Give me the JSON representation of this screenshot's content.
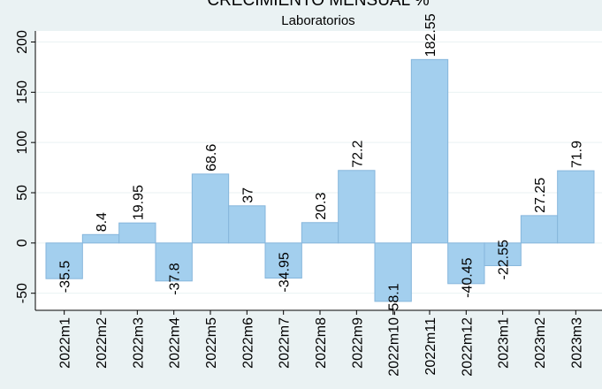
{
  "chart_data": {
    "type": "bar",
    "title": "CRECIMIENTO MENSUAL %",
    "subtitle": "Laboratorios",
    "categories": [
      "2022m1",
      "2022m2",
      "2022m3",
      "2022m4",
      "2022m5",
      "2022m6",
      "2022m7",
      "2022m8",
      "2022m9",
      "2022m10",
      "2022m11",
      "2022m12",
      "2023m1",
      "2023m2",
      "2023m3"
    ],
    "values": [
      -35.5,
      8.4,
      19.95,
      -37.8,
      68.6,
      37,
      -34.95,
      20.3,
      72.2,
      -58.1,
      182.55,
      -40.45,
      -22.55,
      27.25,
      71.9
    ],
    "color": "#a3cfee",
    "ylim": [
      -67,
      211
    ],
    "yticks": [
      -50,
      0,
      50,
      100,
      150,
      200
    ],
    "grid": true
  }
}
